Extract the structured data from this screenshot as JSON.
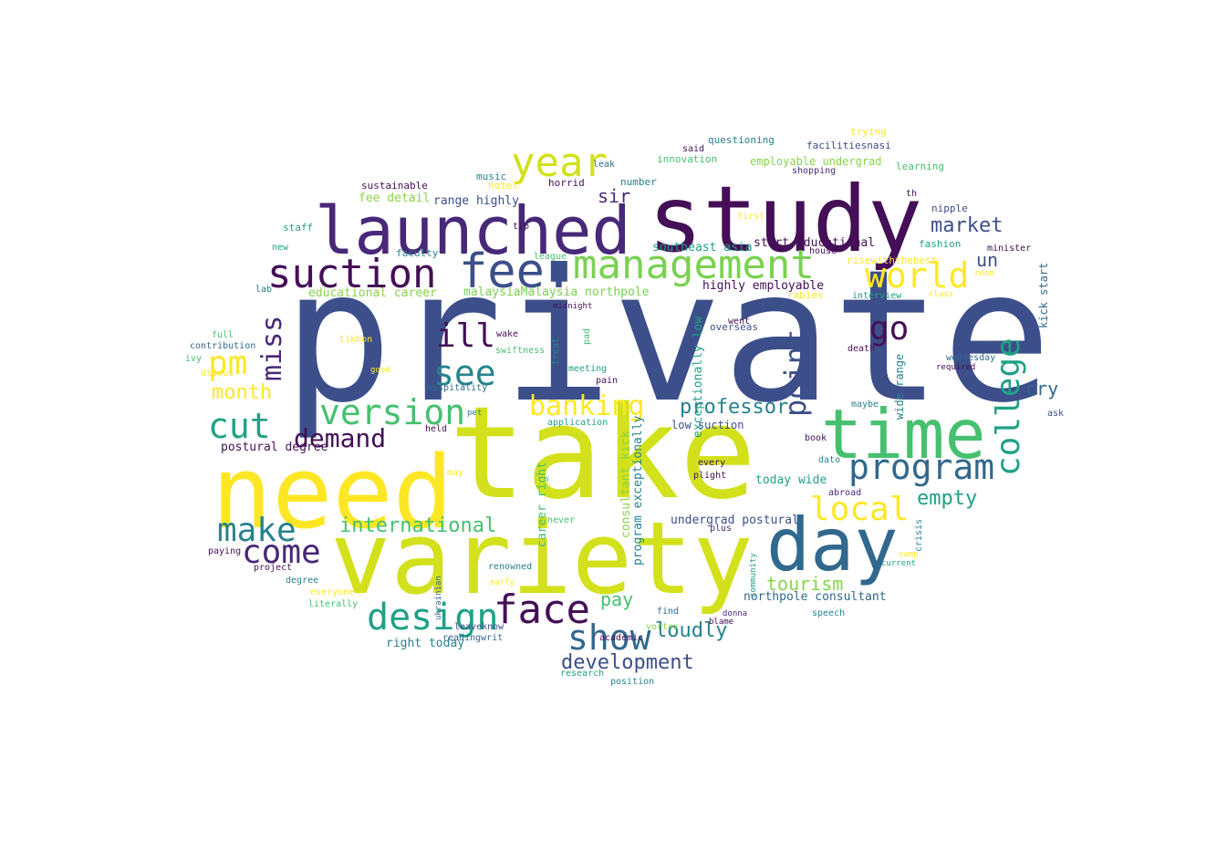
{
  "palette": {
    "c1": "#3c4f8a",
    "c2": "#d2e11b",
    "c3": "#440f56",
    "c4": "#46c06f",
    "c5": "#1fa187",
    "c6": "#fde725",
    "c7": "#31688e",
    "c8": "#26828e",
    "c9": "#482878",
    "c10": "#87d549",
    "c11": "#7ad151"
  },
  "words": [
    {
      "text": "private",
      "color": "c1"
    },
    {
      "text": "take",
      "color": "c2"
    },
    {
      "text": "study",
      "color": "c3"
    },
    {
      "text": "need",
      "color": "c6"
    },
    {
      "text": "variety",
      "color": "c2"
    },
    {
      "text": "time",
      "color": "c4"
    },
    {
      "text": "launched",
      "color": "c9"
    },
    {
      "text": "day",
      "color": "c7"
    },
    {
      "text": "fee.",
      "color": "c1"
    },
    {
      "text": "suction",
      "color": "c3"
    },
    {
      "text": "management",
      "color": "c11"
    },
    {
      "text": "year",
      "color": "c2"
    },
    {
      "text": "world",
      "color": "c6"
    },
    {
      "text": "program",
      "color": "c7"
    },
    {
      "text": "college",
      "color": "c5"
    },
    {
      "text": "face",
      "color": "c3"
    },
    {
      "text": "design",
      "color": "c5"
    },
    {
      "text": "show",
      "color": "c7"
    },
    {
      "text": "version",
      "color": "c4"
    },
    {
      "text": "banking",
      "color": "c6"
    },
    {
      "text": "see",
      "color": "c8"
    },
    {
      "text": "cut",
      "color": "c5"
    },
    {
      "text": "make",
      "color": "c8"
    },
    {
      "text": "come",
      "color": "c9"
    },
    {
      "text": "pm",
      "color": "c6"
    },
    {
      "text": "ill",
      "color": "c3"
    },
    {
      "text": "go",
      "color": "c3"
    },
    {
      "text": "local",
      "color": "c6"
    },
    {
      "text": "point",
      "color": "c1"
    },
    {
      "text": "miss",
      "color": "c9"
    },
    {
      "text": "demand",
      "color": "c3"
    },
    {
      "text": "international",
      "color": "c4"
    },
    {
      "text": "development",
      "color": "c1"
    },
    {
      "text": "month",
      "color": "c6"
    },
    {
      "text": "professor",
      "color": "c8"
    },
    {
      "text": "empty",
      "color": "c5"
    },
    {
      "text": "market",
      "color": "c1"
    },
    {
      "text": "loudly",
      "color": "c8"
    },
    {
      "text": "tourism",
      "color": "c10"
    },
    {
      "text": "cry",
      "color": "c7"
    },
    {
      "text": "pay",
      "color": "c4"
    },
    {
      "text": "sir",
      "color": "c9"
    },
    {
      "text": "un",
      "color": "c1"
    },
    {
      "text": "educational career",
      "color": "c10"
    },
    {
      "text": "malaysiaMalaysia northpole",
      "color": "c11"
    },
    {
      "text": "highly employable",
      "color": "c3"
    },
    {
      "text": "start educational",
      "color": "c3"
    },
    {
      "text": "southeast asia",
      "color": "c5"
    },
    {
      "text": "northpole consultant",
      "color": "c7"
    },
    {
      "text": "undergrad postural",
      "color": "c1"
    },
    {
      "text": "postural degree",
      "color": "c3"
    },
    {
      "text": "range highly",
      "color": "c1"
    },
    {
      "text": "fee detail",
      "color": "c10"
    },
    {
      "text": "today wide",
      "color": "c5"
    },
    {
      "text": "right today",
      "color": "c8"
    },
    {
      "text": "consultant kick",
      "color": "c10"
    },
    {
      "text": "program exceptionally",
      "color": "c8"
    },
    {
      "text": "career right",
      "color": "c4"
    },
    {
      "text": "exceptionally low",
      "color": "c5"
    },
    {
      "text": "employable undergrad",
      "color": "c10"
    },
    {
      "text": "low suction",
      "color": "c1"
    },
    {
      "text": "wide range",
      "color": "c8"
    },
    {
      "text": "kick start",
      "color": "c7"
    },
    {
      "text": "facilitiesnasi",
      "color": "c1"
    },
    {
      "text": "innovation",
      "color": "c4"
    },
    {
      "text": "questioning",
      "color": "c8"
    },
    {
      "text": "trying",
      "color": "c6"
    },
    {
      "text": "learning",
      "color": "c4"
    },
    {
      "text": "shopping",
      "color": "c9"
    },
    {
      "text": "sustainable",
      "color": "c3"
    },
    {
      "text": "music",
      "color": "c8"
    },
    {
      "text": "hotel",
      "color": "c6"
    },
    {
      "text": "horrid",
      "color": "c3"
    },
    {
      "text": "number",
      "color": "c8"
    },
    {
      "text": "leak",
      "color": "c7"
    },
    {
      "text": "nipple",
      "color": "c1"
    },
    {
      "text": "fashion",
      "color": "c5"
    },
    {
      "text": "minister",
      "color": "c3"
    },
    {
      "text": "risewiththebest",
      "color": "c6"
    },
    {
      "text": "rabies",
      "color": "c6"
    },
    {
      "text": "interview",
      "color": "c5"
    },
    {
      "text": "staff",
      "color": "c5"
    },
    {
      "text": "faculty",
      "color": "c8"
    },
    {
      "text": "league",
      "color": "c4"
    },
    {
      "text": "tip",
      "color": "c3"
    },
    {
      "text": "first",
      "color": "c6"
    },
    {
      "text": "lab",
      "color": "c8"
    },
    {
      "text": "new",
      "color": "c5"
    },
    {
      "text": "full",
      "color": "c4"
    },
    {
      "text": "ivy",
      "color": "c4"
    },
    {
      "text": "contribution",
      "color": "c7"
    },
    {
      "text": "tikhon",
      "color": "c6"
    },
    {
      "text": "discus",
      "color": "c6"
    },
    {
      "text": "wake",
      "color": "c3"
    },
    {
      "text": "swiftness",
      "color": "c4"
    },
    {
      "text": "midnight",
      "color": "c3"
    },
    {
      "text": "meeting",
      "color": "c5"
    },
    {
      "text": "hospitality",
      "color": "c7"
    },
    {
      "text": "pain",
      "color": "c3"
    },
    {
      "text": "treat",
      "color": "c8"
    },
    {
      "text": "pad",
      "color": "c4"
    },
    {
      "text": "overseas",
      "color": "c1"
    },
    {
      "text": "went",
      "color": "c3"
    },
    {
      "text": "death",
      "color": "c3"
    },
    {
      "text": "required",
      "color": "c3"
    },
    {
      "text": "wednesday",
      "color": "c7"
    },
    {
      "text": "maybe",
      "color": "c8"
    },
    {
      "text": "ask",
      "color": "c1"
    },
    {
      "text": "application",
      "color": "c5"
    },
    {
      "text": "held",
      "color": "c3"
    },
    {
      "text": "pet",
      "color": "c8"
    },
    {
      "text": "good",
      "color": "c6"
    },
    {
      "text": "book",
      "color": "c3"
    },
    {
      "text": "dato",
      "color": "c8"
    },
    {
      "text": "every",
      "color": "c3"
    },
    {
      "text": "plight",
      "color": "c3"
    },
    {
      "text": "abroad",
      "color": "c9"
    },
    {
      "text": "may",
      "color": "c6"
    },
    {
      "text": "never",
      "color": "c4"
    },
    {
      "text": "plus",
      "color": "c9"
    },
    {
      "text": "community",
      "color": "c5"
    },
    {
      "text": "crisis",
      "color": "c8"
    },
    {
      "text": "camp",
      "color": "c6"
    },
    {
      "text": "current",
      "color": "c5"
    },
    {
      "text": "paying",
      "color": "c3"
    },
    {
      "text": "project",
      "color": "c3"
    },
    {
      "text": "degree",
      "color": "c8"
    },
    {
      "text": "renowned",
      "color": "c8"
    },
    {
      "text": "early",
      "color": "c6"
    },
    {
      "text": "ukrainian",
      "color": "c7"
    },
    {
      "text": "everyone",
      "color": "c6"
    },
    {
      "text": "literally",
      "color": "c4"
    },
    {
      "text": "leaveknow",
      "color": "c1"
    },
    {
      "text": "academic",
      "color": "c3"
    },
    {
      "text": "find",
      "color": "c7"
    },
    {
      "text": "vortex",
      "color": "c10"
    },
    {
      "text": "donna",
      "color": "c9"
    },
    {
      "text": "blame",
      "color": "c3"
    },
    {
      "text": "speech",
      "color": "c8"
    },
    {
      "text": "readingwrit",
      "color": "c7"
    },
    {
      "text": "research",
      "color": "c5"
    },
    {
      "text": "position",
      "color": "c8"
    },
    {
      "text": "said",
      "color": "c3"
    },
    {
      "text": "room",
      "color": "c6"
    },
    {
      "text": "class",
      "color": "c6"
    },
    {
      "text": "th",
      "color": "c3"
    },
    {
      "text": "house",
      "color": "c3"
    }
  ]
}
